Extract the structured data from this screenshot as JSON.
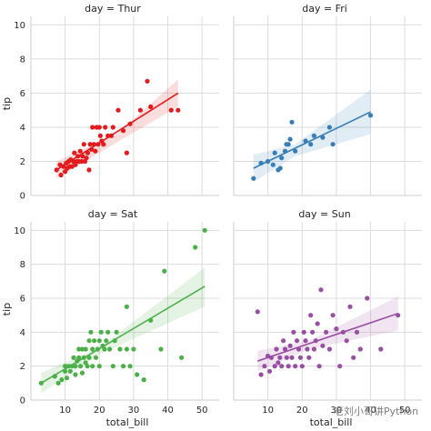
{
  "chart_data": {
    "type": "scatter",
    "xlabel": "total_bill",
    "ylabel": "tip",
    "xlim": [
      0,
      55
    ],
    "ylim": [
      0,
      10.5
    ],
    "xticks": [
      10,
      20,
      30,
      40,
      50
    ],
    "yticks": [
      0,
      2,
      4,
      6,
      8,
      10
    ],
    "grid": true,
    "panels": [
      {
        "title": "day = Thur",
        "color": "#e41a1c",
        "points": [
          [
            7.5,
            1.5
          ],
          [
            8.5,
            1.8
          ],
          [
            8.8,
            1.2
          ],
          [
            9.5,
            1.7
          ],
          [
            10.0,
            1.4
          ],
          [
            10.3,
            1.9
          ],
          [
            10.6,
            1.6
          ],
          [
            11.0,
            2.0
          ],
          [
            11.3,
            1.7
          ],
          [
            11.6,
            2.1
          ],
          [
            12.0,
            1.7
          ],
          [
            12.4,
            2.0
          ],
          [
            12.7,
            2.5
          ],
          [
            13.0,
            1.8
          ],
          [
            13.4,
            2.0
          ],
          [
            13.7,
            2.3
          ],
          [
            14.0,
            2.0
          ],
          [
            14.4,
            2.6
          ],
          [
            14.8,
            2.0
          ],
          [
            15.1,
            2.3
          ],
          [
            15.5,
            3.0
          ],
          [
            15.8,
            2.0
          ],
          [
            16.2,
            2.2
          ],
          [
            16.6,
            2.5
          ],
          [
            17.0,
            1.5
          ],
          [
            17.3,
            3.0
          ],
          [
            17.7,
            2.7
          ],
          [
            18.0,
            4.0
          ],
          [
            18.4,
            3.0
          ],
          [
            18.8,
            2.6
          ],
          [
            19.2,
            4.0
          ],
          [
            19.6,
            3.0
          ],
          [
            20.0,
            4.0
          ],
          [
            20.3,
            3.5
          ],
          [
            20.7,
            3.2
          ],
          [
            21.2,
            3.0
          ],
          [
            21.7,
            4.0
          ],
          [
            22.5,
            3.5
          ],
          [
            23.5,
            3.5
          ],
          [
            24.0,
            4.0
          ],
          [
            25.5,
            5.0
          ],
          [
            27.0,
            3.8
          ],
          [
            28.0,
            2.5
          ],
          [
            29.0,
            4.2
          ],
          [
            32.0,
            5.0
          ],
          [
            34.0,
            6.7
          ],
          [
            35.0,
            5.2
          ],
          [
            41.0,
            5.0
          ],
          [
            43.0,
            5.0
          ]
        ],
        "reg": {
          "x": [
            7.5,
            43.0
          ],
          "y": [
            1.5,
            6.0
          ]
        },
        "ci": {
          "x": [
            7.5,
            25,
            43.0
          ],
          "upper": [
            2.0,
            3.6,
            6.8
          ],
          "lower": [
            1.0,
            3.1,
            5.2
          ]
        }
      },
      {
        "title": "day = Fri",
        "color": "#377eb8",
        "points": [
          [
            5.8,
            1.0
          ],
          [
            8.0,
            1.9
          ],
          [
            10.0,
            2.0
          ],
          [
            11.5,
            1.8
          ],
          [
            12.0,
            2.5
          ],
          [
            13.0,
            1.5
          ],
          [
            13.6,
            1.6
          ],
          [
            14.0,
            2.2
          ],
          [
            15.0,
            2.6
          ],
          [
            15.4,
            3.0
          ],
          [
            16.0,
            3.0
          ],
          [
            16.5,
            3.3
          ],
          [
            17.0,
            4.3
          ],
          [
            18.0,
            2.6
          ],
          [
            21.0,
            3.2
          ],
          [
            22.5,
            3.0
          ],
          [
            23.5,
            3.5
          ],
          [
            26.0,
            3.4
          ],
          [
            28.0,
            4.0
          ],
          [
            29.0,
            3.0
          ],
          [
            40.0,
            4.7
          ]
        ],
        "reg": {
          "x": [
            5.8,
            40.0
          ],
          "y": [
            1.6,
            4.9
          ]
        },
        "ci": {
          "x": [
            5.8,
            18,
            40.0
          ],
          "upper": [
            2.4,
            3.0,
            6.2
          ],
          "lower": [
            0.8,
            2.3,
            3.6
          ]
        }
      },
      {
        "title": "day = Sat",
        "color": "#4daf4a",
        "points": [
          [
            3.0,
            1.0
          ],
          [
            7.0,
            1.4
          ],
          [
            8.0,
            1.0
          ],
          [
            9.0,
            1.2
          ],
          [
            10.0,
            1.7
          ],
          [
            10.0,
            2.0
          ],
          [
            10.5,
            1.3
          ],
          [
            11.0,
            2.0
          ],
          [
            11.5,
            1.7
          ],
          [
            12.0,
            2.0
          ],
          [
            12.5,
            2.5
          ],
          [
            13.0,
            2.0
          ],
          [
            13.0,
            1.5
          ],
          [
            13.5,
            2.3
          ],
          [
            14.0,
            2.5
          ],
          [
            14.0,
            3.0
          ],
          [
            14.5,
            2.0
          ],
          [
            15.0,
            3.0
          ],
          [
            15.0,
            1.6
          ],
          [
            15.5,
            2.5
          ],
          [
            16.0,
            3.0
          ],
          [
            16.0,
            2.2
          ],
          [
            16.5,
            2.0
          ],
          [
            17.0,
            3.5
          ],
          [
            17.0,
            2.5
          ],
          [
            17.5,
            4.0
          ],
          [
            18.0,
            3.0
          ],
          [
            18.0,
            2.0
          ],
          [
            18.5,
            3.5
          ],
          [
            19.0,
            2.5
          ],
          [
            19.5,
            3.0
          ],
          [
            20.0,
            2.0
          ],
          [
            20.0,
            3.5
          ],
          [
            20.5,
            4.0
          ],
          [
            21.0,
            3.2
          ],
          [
            21.5,
            3.0
          ],
          [
            22.0,
            3.5
          ],
          [
            22.5,
            4.0
          ],
          [
            23.0,
            3.0
          ],
          [
            24.0,
            2.0
          ],
          [
            24.5,
            3.5
          ],
          [
            25.0,
            4.0
          ],
          [
            26.0,
            3.0
          ],
          [
            27.0,
            2.0
          ],
          [
            28.0,
            5.5
          ],
          [
            28.0,
            3.0
          ],
          [
            29.0,
            2.0
          ],
          [
            30.0,
            3.0
          ],
          [
            31.0,
            1.5
          ],
          [
            33.0,
            1.2
          ],
          [
            35.0,
            4.7
          ],
          [
            38.0,
            3.0
          ],
          [
            39.0,
            7.6
          ],
          [
            44.0,
            2.5
          ],
          [
            48.0,
            9.0
          ],
          [
            50.8,
            10.0
          ]
        ],
        "reg": {
          "x": [
            3.0,
            50.8
          ],
          "y": [
            1.0,
            6.7
          ]
        },
        "ci": {
          "x": [
            3.0,
            20,
            50.8
          ],
          "upper": [
            1.6,
            3.1,
            7.8
          ],
          "lower": [
            0.4,
            2.7,
            5.5
          ]
        }
      },
      {
        "title": "day = Sun",
        "color": "#984ea3",
        "points": [
          [
            7.0,
            5.2
          ],
          [
            8.0,
            1.5
          ],
          [
            9.0,
            2.0
          ],
          [
            10.0,
            2.6
          ],
          [
            10.5,
            1.7
          ],
          [
            11.0,
            2.5
          ],
          [
            12.0,
            2.0
          ],
          [
            12.5,
            3.0
          ],
          [
            13.0,
            2.2
          ],
          [
            13.5,
            2.5
          ],
          [
            14.0,
            2.0
          ],
          [
            14.5,
            3.5
          ],
          [
            15.0,
            3.0
          ],
          [
            15.5,
            2.5
          ],
          [
            16.0,
            2.0
          ],
          [
            16.5,
            3.2
          ],
          [
            17.0,
            2.5
          ],
          [
            17.5,
            4.0
          ],
          [
            18.0,
            2.0
          ],
          [
            18.5,
            3.5
          ],
          [
            19.0,
            3.0
          ],
          [
            19.5,
            2.5
          ],
          [
            20.0,
            2.0
          ],
          [
            20.5,
            4.0
          ],
          [
            21.0,
            3.5
          ],
          [
            21.5,
            3.0
          ],
          [
            22.0,
            2.5
          ],
          [
            22.5,
            5.0
          ],
          [
            23.0,
            4.0
          ],
          [
            23.5,
            3.0
          ],
          [
            24.0,
            3.5
          ],
          [
            24.5,
            4.5
          ],
          [
            25.0,
            2.0
          ],
          [
            25.5,
            6.5
          ],
          [
            26.0,
            3.2
          ],
          [
            27.0,
            4.0
          ],
          [
            28.0,
            3.0
          ],
          [
            29.0,
            5.0
          ],
          [
            30.0,
            4.2
          ],
          [
            31.0,
            2.0
          ],
          [
            32.0,
            4.0
          ],
          [
            33.0,
            3.5
          ],
          [
            34.0,
            5.5
          ],
          [
            35.0,
            2.5
          ],
          [
            36.0,
            4.0
          ],
          [
            37.0,
            3.0
          ],
          [
            39.0,
            6.0
          ],
          [
            43.0,
            3.0
          ],
          [
            48.0,
            5.0
          ]
        ],
        "reg": {
          "x": [
            7.0,
            48.0
          ],
          "y": [
            2.3,
            5.1
          ]
        },
        "ci": {
          "x": [
            7.0,
            22,
            48.0
          ],
          "upper": [
            2.9,
            3.5,
            6.1
          ],
          "lower": [
            1.7,
            3.0,
            4.1
          ]
        }
      }
    ]
  },
  "watermark": "老刘小哥讲Python"
}
